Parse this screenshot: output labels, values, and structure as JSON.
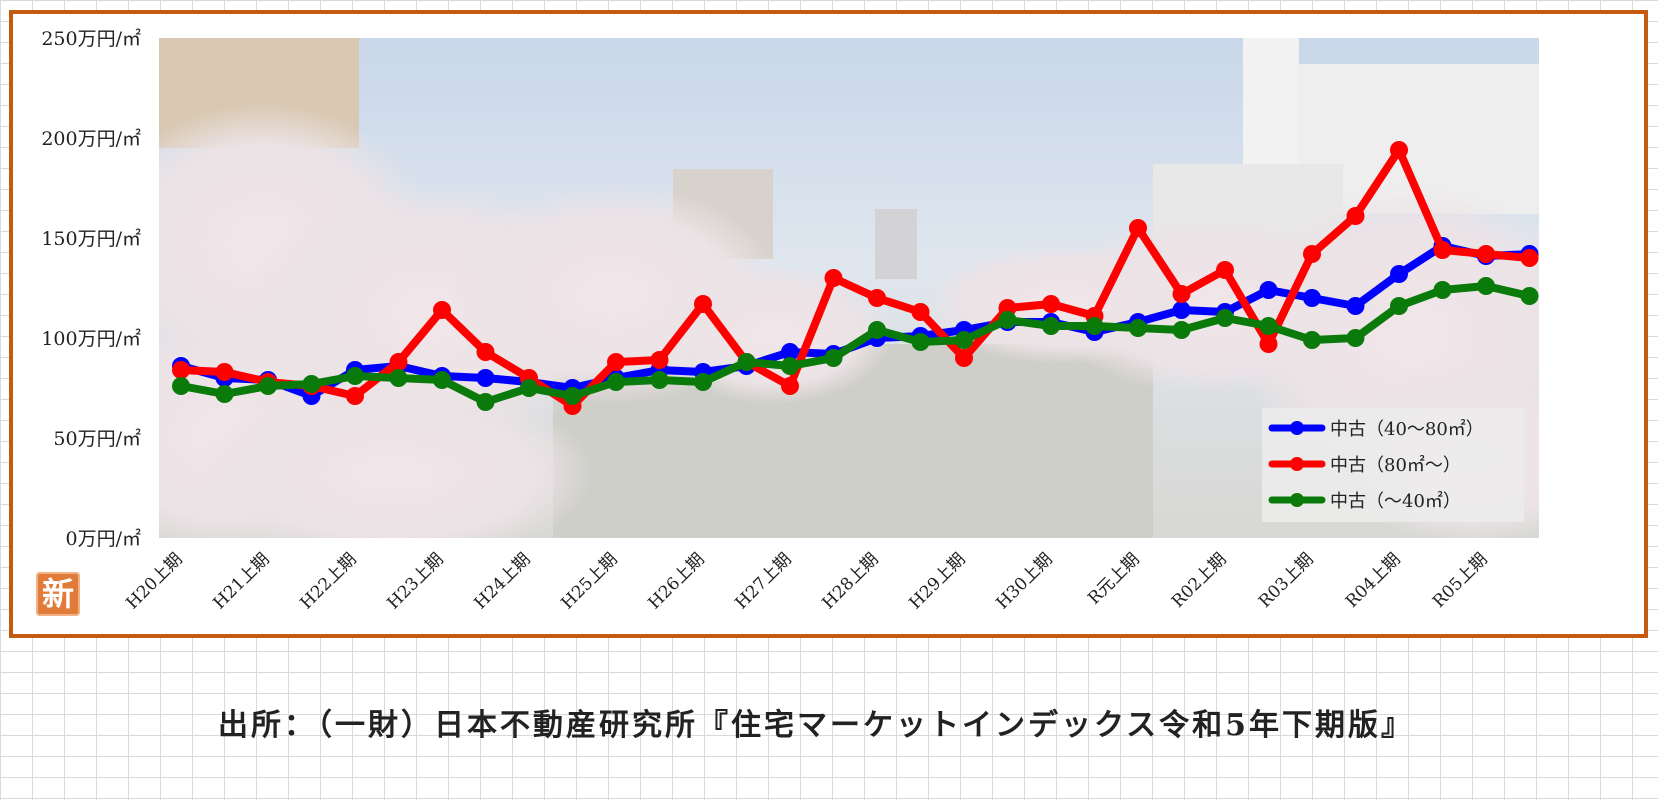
{
  "badge": {
    "label": "新"
  },
  "source": {
    "text": "出所：（一財）日本不動産研究所『住宅マーケットインデックス令和5年下期版』"
  },
  "colors": {
    "frame": "#c55a11",
    "blue": "#0000ff",
    "red": "#ff0000",
    "green": "#0a7a0a"
  },
  "chart_data": {
    "type": "line",
    "title": "",
    "xlabel": "",
    "ylabel": "",
    "ylim": [
      0,
      250
    ],
    "yticks": [
      0,
      50,
      100,
      150,
      200,
      250
    ],
    "ytick_labels": [
      "0万円/㎡",
      "50万円/㎡",
      "100万円/㎡",
      "150万円/㎡",
      "200万円/㎡",
      "250万円/㎡"
    ],
    "x_tick_labels": [
      "H20上期",
      "H21上期",
      "H22上期",
      "H23上期",
      "H24上期",
      "H25上期",
      "H26上期",
      "H27上期",
      "H28上期",
      "H29上期",
      "H30上期",
      "R元上期",
      "R02上期",
      "R03上期",
      "R04上期",
      "R05上期"
    ],
    "legend_position": "bottom-right",
    "grid": false,
    "series": [
      {
        "name": "中古（40～80㎡）",
        "color": "#0000ff",
        "values": [
          86,
          80,
          79,
          71,
          84,
          86,
          81,
          80,
          78,
          75,
          80,
          84,
          83,
          86,
          93,
          92,
          100,
          101,
          104,
          108,
          108,
          103,
          108,
          114,
          113,
          124,
          120,
          116,
          132,
          146,
          141,
          142
        ]
      },
      {
        "name": "中古（80㎡～）",
        "color": "#ff0000",
        "values": [
          84,
          83,
          78,
          76,
          71,
          88,
          114,
          93,
          80,
          66,
          88,
          89,
          117,
          88,
          76,
          130,
          120,
          113,
          90,
          115,
          117,
          111,
          155,
          122,
          134,
          97,
          142,
          161,
          194,
          144,
          142,
          140
        ]
      },
      {
        "name": "中古（～40㎡）",
        "color": "#0a7a0a",
        "values": [
          76,
          72,
          76,
          77,
          81,
          80,
          79,
          68,
          75,
          71,
          78,
          79,
          78,
          88,
          86,
          90,
          104,
          98,
          99,
          109,
          106,
          106,
          105,
          104,
          110,
          106,
          99,
          100,
          116,
          124,
          126,
          121
        ]
      }
    ]
  }
}
